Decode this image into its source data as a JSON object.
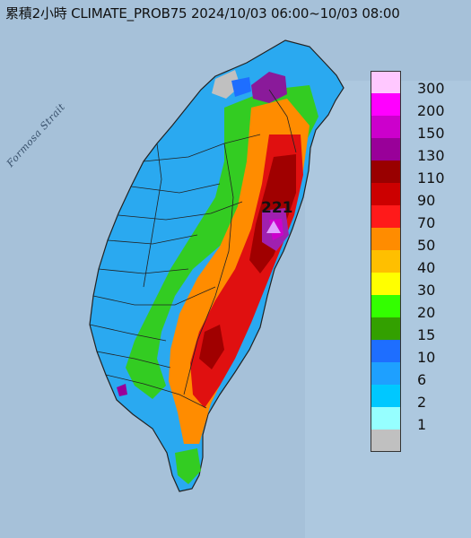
{
  "title": "累積2小時 CLIMATE_PROB75 2024/10/03 06:00~10/03 08:00",
  "strait_label": "Formosa Strait",
  "peak": {
    "value": "221",
    "marker_color": "#e0a0ff"
  },
  "legend": {
    "items": [
      {
        "label": "300",
        "color": "#ffc8ff"
      },
      {
        "label": "200",
        "color": "#ff00ff"
      },
      {
        "label": "150",
        "color": "#cc00cc"
      },
      {
        "label": "130",
        "color": "#990099"
      },
      {
        "label": "110",
        "color": "#990000"
      },
      {
        "label": "90",
        "color": "#cc0000"
      },
      {
        "label": "70",
        "color": "#ff1a1a"
      },
      {
        "label": "50",
        "color": "#ff8c00"
      },
      {
        "label": "40",
        "color": "#ffbf00"
      },
      {
        "label": "30",
        "color": "#ffff00"
      },
      {
        "label": "20",
        "color": "#33ff00"
      },
      {
        "label": "15",
        "color": "#33a000"
      },
      {
        "label": "10",
        "color": "#1e6eff"
      },
      {
        "label": "6",
        "color": "#1ea0ff"
      },
      {
        "label": "2",
        "color": "#00c8ff"
      },
      {
        "label": "1",
        "color": "#96ffff"
      },
      {
        "label": "",
        "color": "#c0c0c0"
      }
    ]
  }
}
